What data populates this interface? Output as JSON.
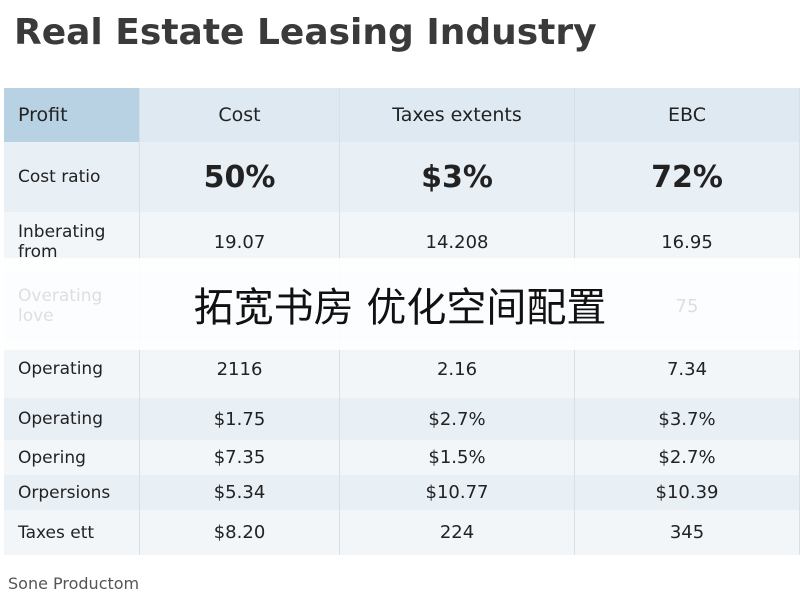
{
  "header": {
    "title": "Real Estate Leasing Industry"
  },
  "table": {
    "columns": [
      "Profit",
      "Cost",
      "Taxes extents",
      "EBC"
    ],
    "rows": [
      [
        "Cost ratio",
        "50%",
        "$3%",
        "72%"
      ],
      [
        "Inberating from",
        "19.07",
        "14.208",
        "16.95"
      ],
      [
        "Overating love",
        null,
        null,
        "75"
      ],
      [
        "Operating",
        "2116",
        "2.16",
        "7.34"
      ],
      [
        "Operating",
        "$1.75",
        "$2.7%",
        "$3.7%"
      ],
      [
        "Opering",
        "$7.35",
        "$1.5%",
        "$2.7%"
      ],
      [
        "Orpersions",
        "$5.34",
        "$10.77",
        "$10.39"
      ],
      [
        "Taxes ett",
        "$8.20",
        "224",
        "345"
      ]
    ]
  },
  "overlay": {
    "text": "拓宽书房 优化空间配置"
  },
  "footer": {
    "text": "Sone Productom"
  }
}
